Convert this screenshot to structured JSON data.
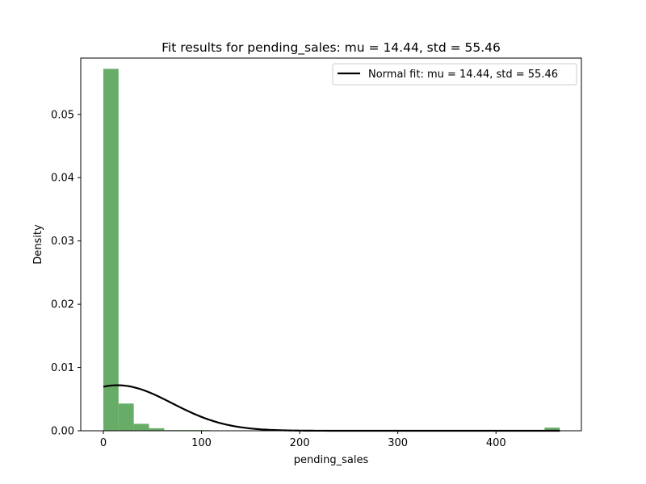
{
  "chart_data": {
    "type": "bar",
    "title": "Fit results for pending_sales: mu = 14.44, std = 55.46",
    "xlabel": "pending_sales",
    "ylabel": "Density",
    "xlim": [
      -23,
      487
    ],
    "ylim": [
      0,
      0.0589
    ],
    "x_ticks": [
      0,
      100,
      200,
      300,
      400
    ],
    "y_ticks": [
      0.0,
      0.01,
      0.02,
      0.03,
      0.04,
      0.05
    ],
    "x_tick_labels": [
      "0",
      "100",
      "200",
      "300",
      "400"
    ],
    "y_tick_labels": [
      "0.00",
      "0.01",
      "0.02",
      "0.03",
      "0.04",
      "0.05"
    ],
    "histogram": {
      "color": "#4c9f4c",
      "bin_edges": [
        0,
        15.5,
        31,
        46.5,
        62,
        77.5,
        93,
        108.5,
        124,
        139.5,
        155,
        170.5,
        186,
        201.5,
        217,
        232.5,
        248,
        263.5,
        279,
        294.5,
        310,
        325.5,
        341,
        356.5,
        372,
        387.5,
        403,
        418.5,
        434,
        449.5,
        465
      ],
      "densities": [
        0.0572,
        0.0043,
        0.0011,
        0.0004,
        0.0001,
        0.0001,
        0.0001,
        0,
        0,
        0,
        0,
        0,
        0,
        0,
        0,
        0,
        0,
        0,
        0,
        0,
        0,
        0,
        0,
        0,
        0,
        0,
        0,
        0,
        0,
        0.0005
      ]
    },
    "fit": {
      "mu": 14.44,
      "std": 55.46,
      "x_range": [
        0,
        465
      ],
      "color": "#000000"
    },
    "legend": {
      "label": "Normal fit: mu = 14.44, std = 55.46",
      "position": "top-right"
    }
  }
}
